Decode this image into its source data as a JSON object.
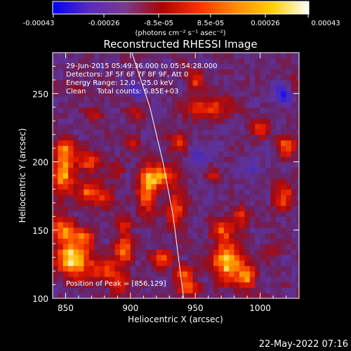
{
  "colorbar": {
    "tick_labels": [
      "-0.00043",
      "-0.00026",
      "-8.5e-05",
      "8.5e-05",
      "0.00026",
      "0.00043"
    ],
    "unit_label": "(photons cm⁻² s⁻¹ asec⁻²)",
    "colors": [
      "#0000ff",
      "#5a2bbf",
      "#7a3a8a",
      "#b00000",
      "#ff3000",
      "#ff8a00",
      "#ffd000",
      "#ffffff"
    ]
  },
  "chart_data": {
    "type": "heatmap",
    "title": "Reconstructed RHESSI Image",
    "xlabel": "Heliocentric X (arcsec)",
    "ylabel": "Heliocentric Y (arcsec)",
    "xlim": [
      840,
      1030
    ],
    "ylim": [
      100,
      280
    ],
    "x_ticks": [
      850,
      900,
      950,
      1000
    ],
    "y_ticks": [
      100,
      150,
      200,
      250
    ],
    "value_range": [
      -0.00043,
      0.00043
    ],
    "annotations": [
      "29-Jun-2015 05:49:36.000 to 05:54:28.000",
      "Detectors: 3F 5F 6F 7F 8F 9F, Att 0",
      "Energy Range: 12.0 - 25.0 keV",
      "Clean     Total counts: 6.85E+03"
    ],
    "peak_label": "Position of Peak = [856,129]",
    "peak": [
      856,
      129
    ],
    "limb_curve": [
      [
        900,
        283
      ],
      [
        915,
        240
      ],
      [
        925,
        200
      ],
      [
        933,
        160
      ],
      [
        941,
        100
      ]
    ],
    "sources": [
      {
        "x": 856,
        "y": 129,
        "amp": 1.0,
        "sx": 9,
        "sy": 9
      },
      {
        "x": 848,
        "y": 150,
        "amp": 0.7,
        "sx": 6,
        "sy": 7
      },
      {
        "x": 865,
        "y": 145,
        "amp": 0.55,
        "sx": 5,
        "sy": 5
      },
      {
        "x": 848,
        "y": 192,
        "amp": 0.8,
        "sx": 6,
        "sy": 12
      },
      {
        "x": 850,
        "y": 210,
        "amp": 0.55,
        "sx": 5,
        "sy": 5
      },
      {
        "x": 868,
        "y": 178,
        "amp": 0.6,
        "sx": 6,
        "sy": 6
      },
      {
        "x": 868,
        "y": 200,
        "amp": 0.55,
        "sx": 7,
        "sy": 5
      },
      {
        "x": 880,
        "y": 175,
        "amp": 0.45,
        "sx": 5,
        "sy": 5
      },
      {
        "x": 880,
        "y": 120,
        "amp": 0.55,
        "sx": 8,
        "sy": 6
      },
      {
        "x": 895,
        "y": 135,
        "amp": 0.7,
        "sx": 5,
        "sy": 7
      },
      {
        "x": 892,
        "y": 110,
        "amp": 0.45,
        "sx": 5,
        "sy": 5
      },
      {
        "x": 895,
        "y": 155,
        "amp": 0.45,
        "sx": 4,
        "sy": 5
      },
      {
        "x": 913,
        "y": 180,
        "amp": 0.75,
        "sx": 5,
        "sy": 12
      },
      {
        "x": 925,
        "y": 190,
        "amp": 0.7,
        "sx": 8,
        "sy": 6
      },
      {
        "x": 935,
        "y": 165,
        "amp": 0.6,
        "sx": 5,
        "sy": 8
      },
      {
        "x": 938,
        "y": 215,
        "amp": 0.5,
        "sx": 5,
        "sy": 5
      },
      {
        "x": 925,
        "y": 130,
        "amp": 0.55,
        "sx": 6,
        "sy": 5
      },
      {
        "x": 942,
        "y": 118,
        "amp": 0.55,
        "sx": 5,
        "sy": 5
      },
      {
        "x": 945,
        "y": 108,
        "amp": 0.55,
        "sx": 6,
        "sy": 4
      },
      {
        "x": 975,
        "y": 127,
        "amp": 0.95,
        "sx": 8,
        "sy": 10
      },
      {
        "x": 970,
        "y": 150,
        "amp": 0.55,
        "sx": 6,
        "sy": 5
      },
      {
        "x": 990,
        "y": 115,
        "amp": 0.65,
        "sx": 5,
        "sy": 7
      },
      {
        "x": 985,
        "y": 160,
        "amp": 0.5,
        "sx": 5,
        "sy": 5
      },
      {
        "x": 960,
        "y": 240,
        "amp": 0.55,
        "sx": 12,
        "sy": 6
      },
      {
        "x": 950,
        "y": 260,
        "amp": 0.5,
        "sx": 5,
        "sy": 5
      },
      {
        "x": 1020,
        "y": 212,
        "amp": 0.6,
        "sx": 5,
        "sy": 6
      },
      {
        "x": 1018,
        "y": 175,
        "amp": 0.55,
        "sx": 5,
        "sy": 8
      },
      {
        "x": 1000,
        "y": 225,
        "amp": 0.5,
        "sx": 5,
        "sy": 5
      },
      {
        "x": 965,
        "y": 190,
        "amp": 0.35,
        "sx": 4,
        "sy": 4
      },
      {
        "x": 1010,
        "y": 135,
        "amp": 0.3,
        "sx": 4,
        "sy": 5
      },
      {
        "x": 900,
        "y": 215,
        "amp": 0.35,
        "sx": 4,
        "sy": 4
      },
      {
        "x": 890,
        "y": 195,
        "amp": 0.3,
        "sx": 4,
        "sy": 4
      },
      {
        "x": 905,
        "y": 235,
        "amp": 0.3,
        "sx": 5,
        "sy": 4
      },
      {
        "x": 872,
        "y": 235,
        "amp": 0.3,
        "sx": 5,
        "sy": 4
      },
      {
        "x": 858,
        "y": 255,
        "amp": 0.25,
        "sx": 4,
        "sy": 4
      },
      {
        "x": 1025,
        "y": 255,
        "amp": 0.35,
        "sx": 4,
        "sy": 5
      },
      {
        "x": 905,
        "y": 252,
        "amp": -0.45,
        "sx": 4,
        "sy": 4
      },
      {
        "x": 1018,
        "y": 250,
        "amp": -0.7,
        "sx": 5,
        "sy": 5
      },
      {
        "x": 952,
        "y": 205,
        "amp": -0.3,
        "sx": 6,
        "sy": 6
      },
      {
        "x": 995,
        "y": 195,
        "amp": -0.25,
        "sx": 6,
        "sy": 6
      }
    ]
  },
  "timestamp": "22-May-2022 07:16"
}
